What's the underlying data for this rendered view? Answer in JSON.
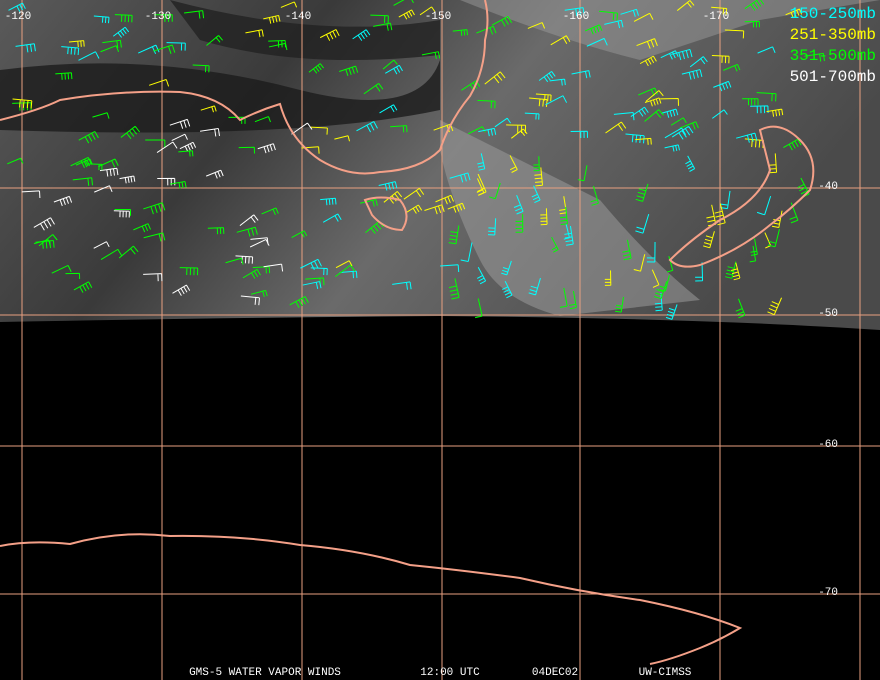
{
  "longitude_labels": [
    "-120",
    "-130",
    "-140",
    "-150",
    "-160",
    "-170"
  ],
  "latitude_labels": [
    "-40",
    "-50",
    "-60",
    "-70"
  ],
  "legend": [
    {
      "label": "150-250mb",
      "color": "#00ffff"
    },
    {
      "label": "251-350mb",
      "color": "#ffff00"
    },
    {
      "label": "351-500mb",
      "color": "#00ff00"
    },
    {
      "label": "501-700mb",
      "color": "#ffffff"
    }
  ],
  "footer": {
    "product": "GMS-5 WATER VAPOR WINDS",
    "time": "12:00 UTC",
    "date": "04DEC02",
    "source": "UW-CIMSS"
  }
}
